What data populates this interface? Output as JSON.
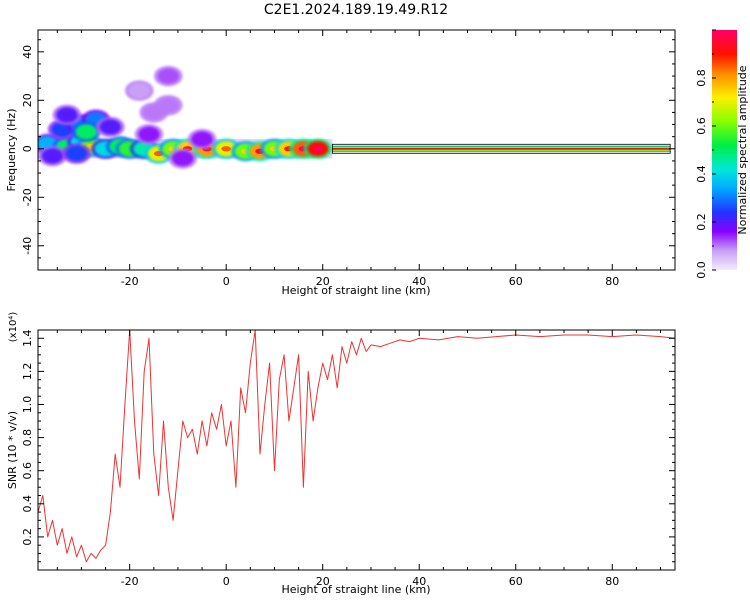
{
  "title": "C2E1.2024.189.19.49.R12",
  "chart_data": [
    {
      "type": "heatmap",
      "xlabel": "Height of straight line (km)",
      "ylabel": "Frequency (Hz)",
      "xlim": [
        -39,
        93
      ],
      "ylim": [
        -50,
        49
      ],
      "xticks": [
        -20,
        0,
        20,
        40,
        60,
        80
      ],
      "yticks": [
        -40,
        -20,
        0,
        20,
        40
      ],
      "colorbar": {
        "label": "Normalized spectral amplitude",
        "range": [
          0.0,
          1.0
        ],
        "ticks": [
          0.0,
          0.2,
          0.4,
          0.6,
          0.8
        ]
      },
      "ridge": {
        "x_start": 22,
        "x_end": 92,
        "frequency": 0,
        "amplitude": 1.0
      },
      "blobs": [
        {
          "x": -37,
          "y": 2,
          "amplitude": 0.35
        },
        {
          "x": -33,
          "y": 1,
          "amplitude": 0.5
        },
        {
          "x": -30,
          "y": 3,
          "amplitude": 0.4
        },
        {
          "x": -28,
          "y": 1,
          "amplitude": 0.6
        },
        {
          "x": -25,
          "y": 0,
          "amplitude": 0.4
        },
        {
          "x": -22,
          "y": 1,
          "amplitude": 0.5
        },
        {
          "x": -20,
          "y": 0,
          "amplitude": 0.55
        },
        {
          "x": -17,
          "y": 0,
          "amplitude": 0.45
        },
        {
          "x": -14,
          "y": -2,
          "amplitude": 0.7
        },
        {
          "x": -11,
          "y": 0,
          "amplitude": 0.6
        },
        {
          "x": -8,
          "y": 0,
          "amplitude": 0.75
        },
        {
          "x": -4,
          "y": 0,
          "amplitude": 0.8
        },
        {
          "x": 0,
          "y": 0,
          "amplitude": 0.7
        },
        {
          "x": 4,
          "y": -1,
          "amplitude": 0.6
        },
        {
          "x": 7,
          "y": -1,
          "amplitude": 0.8
        },
        {
          "x": 10,
          "y": 0,
          "amplitude": 0.6
        },
        {
          "x": 13,
          "y": 0,
          "amplitude": 0.75
        },
        {
          "x": 16,
          "y": 0,
          "amplitude": 0.85
        },
        {
          "x": 19,
          "y": 0,
          "amplitude": 0.9
        },
        {
          "x": -34,
          "y": 8,
          "amplitude": 0.25
        },
        {
          "x": -30,
          "y": 10,
          "amplitude": 0.3
        },
        {
          "x": -27,
          "y": 12,
          "amplitude": 0.3
        },
        {
          "x": -29,
          "y": 7,
          "amplitude": 0.5
        },
        {
          "x": -33,
          "y": 14,
          "amplitude": 0.2
        },
        {
          "x": -24,
          "y": 9,
          "amplitude": 0.2
        },
        {
          "x": -36,
          "y": -3,
          "amplitude": 0.2
        },
        {
          "x": -31,
          "y": -2,
          "amplitude": 0.25
        },
        {
          "x": -15,
          "y": 15,
          "amplitude": 0.1
        },
        {
          "x": -12,
          "y": 18,
          "amplitude": 0.1
        },
        {
          "x": -12,
          "y": 30,
          "amplitude": 0.12
        },
        {
          "x": -18,
          "y": 24,
          "amplitude": 0.08
        },
        {
          "x": -16,
          "y": 6,
          "amplitude": 0.15
        },
        {
          "x": -9,
          "y": -4,
          "amplitude": 0.15
        },
        {
          "x": -5,
          "y": 4,
          "amplitude": 0.15
        }
      ]
    },
    {
      "type": "line",
      "xlabel": "Height of straight line (km)",
      "ylabel": "SNR (10 * v/v)",
      "y_multiplier": "(x10⁴)",
      "xlim": [
        -39,
        93
      ],
      "ylim": [
        0.0,
        1.45
      ],
      "xticks": [
        -20,
        0,
        20,
        40,
        60,
        80
      ],
      "yticks": [
        0.2,
        0.4,
        0.6,
        0.8,
        1.0,
        1.2,
        1.4
      ],
      "series": [
        {
          "color": "#ee3333",
          "x": [
            -39,
            -38,
            -37,
            -36,
            -35,
            -34,
            -33,
            -32,
            -31,
            -30,
            -29,
            -28,
            -27,
            -26,
            -25,
            -24,
            -23,
            -22,
            -21,
            -20,
            -19,
            -18,
            -17,
            -16,
            -15,
            -14,
            -13,
            -12,
            -11,
            -10,
            -9,
            -8,
            -7,
            -6,
            -5,
            -4,
            -3,
            -2,
            -1,
            0,
            1,
            2,
            3,
            4,
            5,
            6,
            7,
            8,
            9,
            10,
            11,
            12,
            13,
            14,
            15,
            16,
            17,
            18,
            19,
            20,
            21,
            22,
            23,
            24,
            25,
            26,
            27,
            28,
            29,
            30,
            32,
            34,
            36,
            38,
            40,
            44,
            48,
            52,
            56,
            60,
            65,
            70,
            75,
            80,
            85,
            90,
            93
          ],
          "values": [
            0.35,
            0.45,
            0.2,
            0.3,
            0.15,
            0.25,
            0.1,
            0.2,
            0.08,
            0.15,
            0.05,
            0.1,
            0.07,
            0.12,
            0.15,
            0.35,
            0.7,
            0.5,
            1.0,
            1.45,
            0.9,
            0.55,
            1.2,
            1.4,
            0.7,
            0.45,
            0.9,
            0.5,
            0.3,
            0.6,
            0.9,
            0.8,
            0.85,
            0.7,
            0.9,
            0.75,
            0.95,
            0.85,
            1.0,
            0.75,
            0.9,
            0.5,
            1.1,
            0.95,
            1.25,
            1.45,
            0.7,
            1.0,
            1.25,
            0.6,
            1.15,
            1.3,
            0.9,
            1.1,
            1.3,
            0.5,
            1.2,
            0.9,
            1.1,
            1.25,
            1.15,
            1.3,
            1.1,
            1.35,
            1.25,
            1.38,
            1.3,
            1.4,
            1.32,
            1.36,
            1.35,
            1.37,
            1.39,
            1.38,
            1.4,
            1.39,
            1.41,
            1.4,
            1.41,
            1.42,
            1.41,
            1.42,
            1.42,
            1.41,
            1.42,
            1.41,
            1.4
          ]
        }
      ]
    }
  ]
}
